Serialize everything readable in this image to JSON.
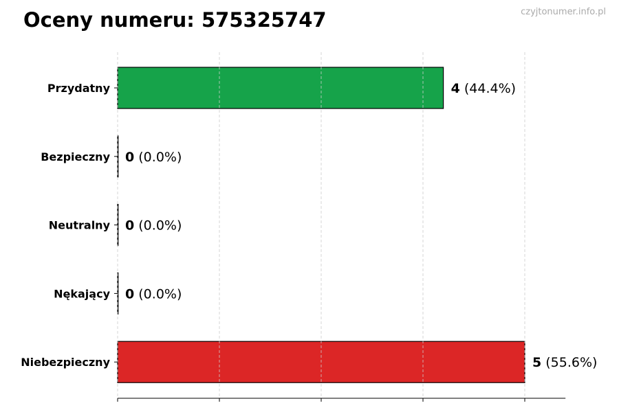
{
  "chart_data": {
    "type": "bar",
    "orientation": "horizontal",
    "title": "Oceny numeru: 575325747",
    "watermark": "czyjtonumer.info.pl",
    "categories": [
      "Przydatny",
      "Bezpieczny",
      "Neutralny",
      "Nękający",
      "Niebezpieczny"
    ],
    "values": [
      4,
      0,
      0,
      0,
      5
    ],
    "value_labels": [
      "(44.4%)",
      "(0.0%)",
      "(0.0%)",
      "(0.0%)",
      "(55.6%)"
    ],
    "colors": [
      "#16a34a",
      "#16a34a",
      "#9ca3af",
      "#dc2626",
      "#dc2626"
    ],
    "xlim": [
      0,
      5.5
    ],
    "x_gridlines": [
      0,
      1.25,
      2.5,
      3.75,
      5
    ],
    "grid": true,
    "xlabel": "",
    "ylabel": ""
  }
}
